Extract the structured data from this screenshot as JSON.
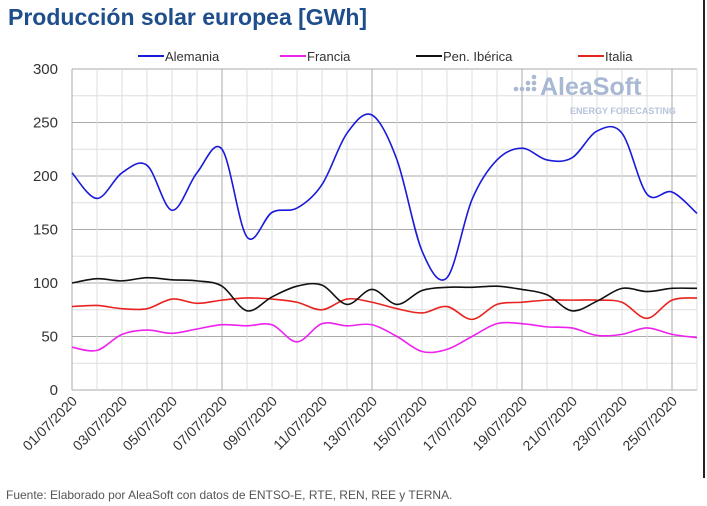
{
  "title": "Producción solar europea [GWh]",
  "source": "Fuente: Elaborado por AleaSoft con datos de ENTSO-E, RTE, REN, REE y TERNA.",
  "logo": {
    "name": "AleaSoft",
    "tagline": "ENERGY FORECASTING"
  },
  "chart_data": {
    "type": "line",
    "title": "Producción solar europea [GWh]",
    "xlabel": "",
    "ylabel": "",
    "ylim": [
      0,
      300
    ],
    "yticks": [
      0,
      50,
      100,
      150,
      200,
      250,
      300
    ],
    "x": [
      "01/07/2020",
      "02/07/2020",
      "03/07/2020",
      "04/07/2020",
      "05/07/2020",
      "06/07/2020",
      "07/07/2020",
      "08/07/2020",
      "09/07/2020",
      "10/07/2020",
      "11/07/2020",
      "12/07/2020",
      "13/07/2020",
      "14/07/2020",
      "15/07/2020",
      "16/07/2020",
      "17/07/2020",
      "18/07/2020",
      "19/07/2020",
      "20/07/2020",
      "21/07/2020",
      "22/07/2020",
      "23/07/2020",
      "24/07/2020",
      "25/07/2020",
      "26/07/2020"
    ],
    "xtick_labels": [
      "01/07/2020",
      "03/07/2020",
      "05/07/2020",
      "07/07/2020",
      "09/07/2020",
      "11/07/2020",
      "13/07/2020",
      "15/07/2020",
      "17/07/2020",
      "19/07/2020",
      "21/07/2020",
      "23/07/2020",
      "25/07/2020"
    ],
    "grid": true,
    "legend_position": "top",
    "series": [
      {
        "name": "Alemania",
        "color": "#1a1adb",
        "values": [
          203,
          179,
          203,
          210,
          168,
          203,
          225,
          143,
          166,
          170,
          192,
          240,
          257,
          215,
          130,
          105,
          178,
          215,
          226,
          215,
          217,
          242,
          240,
          183,
          185,
          165
        ]
      },
      {
        "name": "Francia",
        "color": "#ee22ee",
        "values": [
          40,
          37,
          52,
          56,
          53,
          57,
          61,
          60,
          61,
          45,
          62,
          60,
          61,
          50,
          36,
          38,
          50,
          62,
          62,
          59,
          58,
          51,
          52,
          58,
          52,
          49
        ]
      },
      {
        "name": "Pen. Ibérica",
        "color": "#111111",
        "values": [
          100,
          104,
          102,
          105,
          103,
          102,
          97,
          74,
          87,
          97,
          98,
          80,
          94,
          80,
          93,
          96,
          96,
          97,
          94,
          89,
          74,
          83,
          95,
          92,
          95,
          95
        ]
      },
      {
        "name": "Italia",
        "color": "#e8231f",
        "values": [
          78,
          79,
          76,
          76,
          85,
          81,
          84,
          86,
          85,
          82,
          75,
          85,
          82,
          76,
          72,
          78,
          66,
          80,
          82,
          84,
          84,
          84,
          82,
          67,
          84,
          86
        ]
      }
    ]
  }
}
